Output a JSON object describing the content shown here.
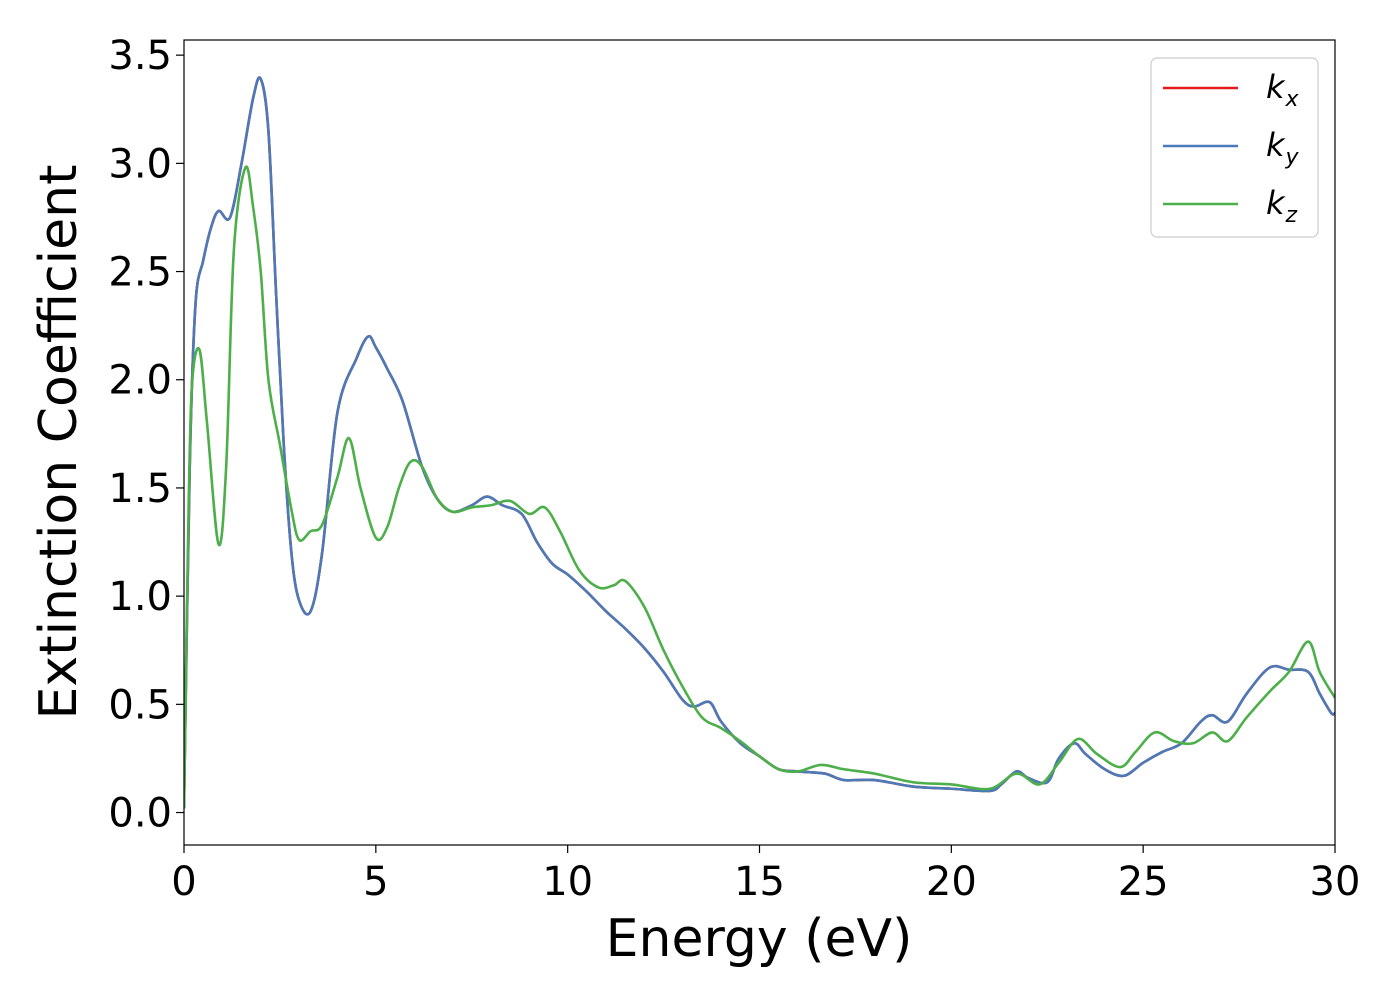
{
  "chart_data": {
    "type": "line",
    "title": "",
    "xlabel": "Energy (eV)",
    "ylabel": "Extinction Coefficient",
    "xlim": [
      0,
      30
    ],
    "ylim": [
      -0.15,
      3.57
    ],
    "xticks": [
      0,
      5,
      10,
      15,
      20,
      25,
      30
    ],
    "yticks": [
      0.0,
      0.5,
      1.0,
      1.5,
      2.0,
      2.5,
      3.0,
      3.5
    ],
    "xtick_labels": [
      "0",
      "5",
      "10",
      "15",
      "20",
      "25",
      "30"
    ],
    "ytick_labels": [
      "0.0",
      "0.5",
      "1.0",
      "1.5",
      "2.0",
      "2.5",
      "3.0",
      "3.5"
    ],
    "grid": false,
    "legend_position": "top-right",
    "series": [
      {
        "name": "k_x",
        "label_base": "k",
        "label_sub": "x",
        "color": "#e41a1c",
        "points": [
          [
            0,
            0.02
          ],
          [
            0.15,
            1.6
          ],
          [
            0.3,
            2.35
          ],
          [
            0.5,
            2.55
          ],
          [
            0.7,
            2.7
          ],
          [
            0.9,
            2.78
          ],
          [
            1.2,
            2.75
          ],
          [
            1.5,
            3.0
          ],
          [
            1.8,
            3.3
          ],
          [
            2.0,
            3.39
          ],
          [
            2.2,
            3.15
          ],
          [
            2.4,
            2.4
          ],
          [
            2.6,
            1.7
          ],
          [
            2.8,
            1.2
          ],
          [
            3.0,
            0.98
          ],
          [
            3.3,
            0.93
          ],
          [
            3.6,
            1.2
          ],
          [
            4.0,
            1.85
          ],
          [
            4.5,
            2.1
          ],
          [
            4.8,
            2.2
          ],
          [
            5.0,
            2.15
          ],
          [
            5.3,
            2.05
          ],
          [
            5.7,
            1.9
          ],
          [
            6.2,
            1.6
          ],
          [
            6.6,
            1.45
          ],
          [
            7.0,
            1.39
          ],
          [
            7.5,
            1.42
          ],
          [
            7.9,
            1.46
          ],
          [
            8.3,
            1.42
          ],
          [
            8.8,
            1.38
          ],
          [
            9.2,
            1.25
          ],
          [
            9.6,
            1.15
          ],
          [
            10.0,
            1.1
          ],
          [
            10.5,
            1.02
          ],
          [
            11.0,
            0.93
          ],
          [
            11.5,
            0.85
          ],
          [
            12.0,
            0.76
          ],
          [
            12.5,
            0.65
          ],
          [
            13.0,
            0.52
          ],
          [
            13.3,
            0.49
          ],
          [
            13.7,
            0.51
          ],
          [
            14.0,
            0.42
          ],
          [
            14.5,
            0.32
          ],
          [
            15.0,
            0.26
          ],
          [
            15.5,
            0.2
          ],
          [
            16.0,
            0.19
          ],
          [
            16.7,
            0.18
          ],
          [
            17.2,
            0.15
          ],
          [
            18.0,
            0.15
          ],
          [
            19.0,
            0.12
          ],
          [
            20.0,
            0.11
          ],
          [
            21.0,
            0.1
          ],
          [
            21.3,
            0.13
          ],
          [
            21.7,
            0.19
          ],
          [
            22.0,
            0.16
          ],
          [
            22.5,
            0.14
          ],
          [
            22.8,
            0.25
          ],
          [
            23.2,
            0.32
          ],
          [
            23.5,
            0.27
          ],
          [
            24.0,
            0.2
          ],
          [
            24.5,
            0.17
          ],
          [
            25.0,
            0.23
          ],
          [
            25.5,
            0.28
          ],
          [
            26.0,
            0.32
          ],
          [
            26.5,
            0.42
          ],
          [
            26.8,
            0.45
          ],
          [
            27.2,
            0.42
          ],
          [
            27.7,
            0.55
          ],
          [
            28.3,
            0.67
          ],
          [
            28.8,
            0.66
          ],
          [
            29.3,
            0.65
          ],
          [
            29.6,
            0.55
          ],
          [
            29.9,
            0.46
          ],
          [
            30.0,
            0.46
          ]
        ]
      },
      {
        "name": "k_y",
        "label_base": "k",
        "label_sub": "y",
        "color": "#4a7ab8",
        "points": [
          [
            0,
            0.02
          ],
          [
            0.15,
            1.6
          ],
          [
            0.3,
            2.35
          ],
          [
            0.5,
            2.55
          ],
          [
            0.7,
            2.7
          ],
          [
            0.9,
            2.78
          ],
          [
            1.2,
            2.75
          ],
          [
            1.5,
            3.0
          ],
          [
            1.8,
            3.3
          ],
          [
            2.0,
            3.39
          ],
          [
            2.2,
            3.15
          ],
          [
            2.4,
            2.4
          ],
          [
            2.6,
            1.7
          ],
          [
            2.8,
            1.2
          ],
          [
            3.0,
            0.98
          ],
          [
            3.3,
            0.93
          ],
          [
            3.6,
            1.2
          ],
          [
            4.0,
            1.85
          ],
          [
            4.5,
            2.1
          ],
          [
            4.8,
            2.2
          ],
          [
            5.0,
            2.15
          ],
          [
            5.3,
            2.05
          ],
          [
            5.7,
            1.9
          ],
          [
            6.2,
            1.6
          ],
          [
            6.6,
            1.45
          ],
          [
            7.0,
            1.39
          ],
          [
            7.5,
            1.42
          ],
          [
            7.9,
            1.46
          ],
          [
            8.3,
            1.42
          ],
          [
            8.8,
            1.38
          ],
          [
            9.2,
            1.25
          ],
          [
            9.6,
            1.15
          ],
          [
            10.0,
            1.1
          ],
          [
            10.5,
            1.02
          ],
          [
            11.0,
            0.93
          ],
          [
            11.5,
            0.85
          ],
          [
            12.0,
            0.76
          ],
          [
            12.5,
            0.65
          ],
          [
            13.0,
            0.52
          ],
          [
            13.3,
            0.49
          ],
          [
            13.7,
            0.51
          ],
          [
            14.0,
            0.42
          ],
          [
            14.5,
            0.32
          ],
          [
            15.0,
            0.26
          ],
          [
            15.5,
            0.2
          ],
          [
            16.0,
            0.19
          ],
          [
            16.7,
            0.18
          ],
          [
            17.2,
            0.15
          ],
          [
            18.0,
            0.15
          ],
          [
            19.0,
            0.12
          ],
          [
            20.0,
            0.11
          ],
          [
            21.0,
            0.1
          ],
          [
            21.3,
            0.13
          ],
          [
            21.7,
            0.19
          ],
          [
            22.0,
            0.16
          ],
          [
            22.5,
            0.14
          ],
          [
            22.8,
            0.25
          ],
          [
            23.2,
            0.32
          ],
          [
            23.5,
            0.27
          ],
          [
            24.0,
            0.2
          ],
          [
            24.5,
            0.17
          ],
          [
            25.0,
            0.23
          ],
          [
            25.5,
            0.28
          ],
          [
            26.0,
            0.32
          ],
          [
            26.5,
            0.42
          ],
          [
            26.8,
            0.45
          ],
          [
            27.2,
            0.42
          ],
          [
            27.7,
            0.55
          ],
          [
            28.3,
            0.67
          ],
          [
            28.8,
            0.66
          ],
          [
            29.3,
            0.65
          ],
          [
            29.6,
            0.55
          ],
          [
            29.9,
            0.46
          ],
          [
            30.0,
            0.46
          ]
        ]
      },
      {
        "name": "k_z",
        "label_base": "k",
        "label_sub": "z",
        "color": "#4daf4a",
        "points": [
          [
            0,
            0.02
          ],
          [
            0.1,
            1.2
          ],
          [
            0.2,
            1.95
          ],
          [
            0.4,
            2.14
          ],
          [
            0.6,
            1.8
          ],
          [
            0.9,
            1.24
          ],
          [
            1.1,
            1.6
          ],
          [
            1.3,
            2.6
          ],
          [
            1.6,
            2.98
          ],
          [
            1.8,
            2.8
          ],
          [
            2.0,
            2.5
          ],
          [
            2.2,
            2.0
          ],
          [
            2.5,
            1.7
          ],
          [
            2.8,
            1.4
          ],
          [
            3.0,
            1.26
          ],
          [
            3.3,
            1.3
          ],
          [
            3.6,
            1.33
          ],
          [
            4.0,
            1.55
          ],
          [
            4.3,
            1.73
          ],
          [
            4.6,
            1.5
          ],
          [
            5.0,
            1.27
          ],
          [
            5.3,
            1.32
          ],
          [
            5.6,
            1.5
          ],
          [
            5.9,
            1.62
          ],
          [
            6.2,
            1.6
          ],
          [
            6.6,
            1.45
          ],
          [
            7.0,
            1.39
          ],
          [
            7.5,
            1.41
          ],
          [
            8.0,
            1.42
          ],
          [
            8.5,
            1.44
          ],
          [
            9.0,
            1.38
          ],
          [
            9.4,
            1.41
          ],
          [
            9.8,
            1.3
          ],
          [
            10.3,
            1.12
          ],
          [
            10.8,
            1.04
          ],
          [
            11.2,
            1.05
          ],
          [
            11.5,
            1.07
          ],
          [
            12.0,
            0.95
          ],
          [
            12.5,
            0.75
          ],
          [
            13.0,
            0.58
          ],
          [
            13.5,
            0.44
          ],
          [
            14.0,
            0.39
          ],
          [
            14.5,
            0.33
          ],
          [
            15.0,
            0.26
          ],
          [
            15.5,
            0.2
          ],
          [
            16.0,
            0.19
          ],
          [
            16.6,
            0.22
          ],
          [
            17.2,
            0.2
          ],
          [
            18.0,
            0.18
          ],
          [
            19.0,
            0.14
          ],
          [
            20.0,
            0.13
          ],
          [
            21.0,
            0.11
          ],
          [
            21.7,
            0.18
          ],
          [
            22.3,
            0.13
          ],
          [
            22.8,
            0.23
          ],
          [
            23.3,
            0.34
          ],
          [
            23.8,
            0.27
          ],
          [
            24.4,
            0.21
          ],
          [
            24.8,
            0.28
          ],
          [
            25.3,
            0.37
          ],
          [
            25.8,
            0.33
          ],
          [
            26.3,
            0.32
          ],
          [
            26.8,
            0.37
          ],
          [
            27.2,
            0.33
          ],
          [
            27.7,
            0.44
          ],
          [
            28.3,
            0.56
          ],
          [
            28.8,
            0.65
          ],
          [
            29.3,
            0.79
          ],
          [
            29.6,
            0.65
          ],
          [
            30.0,
            0.53
          ]
        ]
      }
    ]
  }
}
